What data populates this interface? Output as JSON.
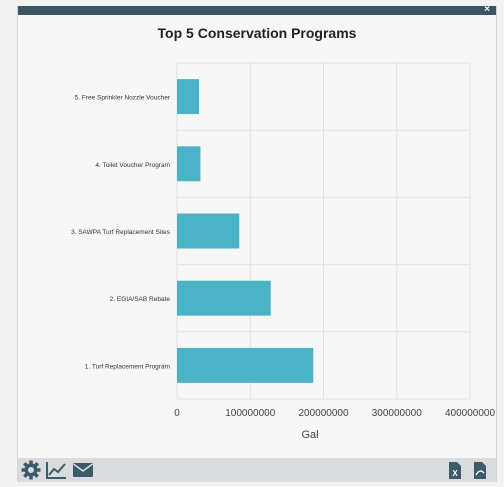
{
  "window": {
    "close_label": "×"
  },
  "colors": {
    "bar": "#4ab3c5",
    "header": "#3b5562",
    "footer_icon": "#3e5b6b"
  },
  "chart_data": {
    "type": "bar",
    "orientation": "horizontal",
    "title": "Top 5 Conservation Programs",
    "xlabel": "Gal",
    "ylabel": "",
    "categories": [
      "5. Free Sprinkler Nozzle Voucher",
      "4. Toilet Voucher Program",
      "3. SAWPA Turf Replacement Sites",
      "2. EGIA/SAB Rebate",
      "1. Turf Replacement Program"
    ],
    "values": [
      30000000,
      32000000,
      85000000,
      128000000,
      186000000
    ],
    "xlim": [
      0,
      400000000
    ],
    "xticks": [
      "0",
      "100000000",
      "200000000",
      "300000000",
      "400000000"
    ],
    "grid": true,
    "legend": "none"
  },
  "footer": {
    "icons": [
      "gear-icon",
      "line-chart-icon",
      "mail-icon",
      "excel-export-icon",
      "pdf-export-icon"
    ]
  }
}
